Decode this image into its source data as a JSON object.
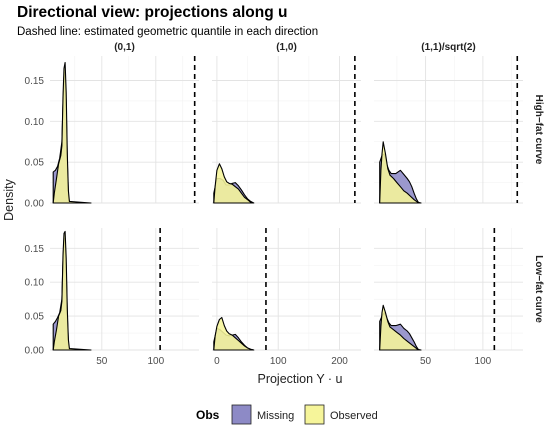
{
  "title": "Directional view: projections along u",
  "subtitle": "Dashed line: estimated geometric quantile in each direction",
  "y_axis_title": "Density",
  "x_axis_title": "Projection Y · u",
  "legend": {
    "title": "Obs",
    "entries": [
      {
        "label": "Missing",
        "color": "#8d8ac6"
      },
      {
        "label": "Observed",
        "color": "#f6f59a"
      }
    ]
  },
  "chart_data": {
    "type": "area",
    "subtype": "faceted density plot",
    "col_labels": [
      "(0,1)",
      "(1,0)",
      "(1,1)/sqrt(2)"
    ],
    "row_labels": [
      "High−fat curve",
      "Low−fat curve"
    ],
    "y_range": [
      0,
      0.18
    ],
    "y_ticks": [
      0.0,
      0.05,
      0.1,
      0.15
    ],
    "y_tick_labels": [
      "0.00",
      "0.05",
      "0.10",
      "0.15"
    ],
    "columns": [
      {
        "x_range": [
          2,
          140
        ],
        "x_ticks": [
          50,
          100
        ],
        "x_tick_labels": [
          "50",
          "100"
        ]
      },
      {
        "x_range": [
          -8,
          235
        ],
        "x_ticks": [
          0,
          100,
          200
        ],
        "x_tick_labels": [
          "0",
          "100",
          "200"
        ]
      },
      {
        "x_range": [
          5,
          135
        ],
        "x_ticks": [
          50,
          100
        ],
        "x_tick_labels": [
          "50",
          "100"
        ]
      }
    ],
    "panels": [
      {
        "row": 0,
        "col": 0,
        "quantile": 136,
        "missing": [
          [
            5,
            0.038
          ],
          [
            7,
            0.04
          ],
          [
            9,
            0.045
          ],
          [
            11,
            0.055
          ],
          [
            13,
            0.075
          ],
          [
            14,
            0.12
          ],
          [
            15,
            0.155
          ],
          [
            16,
            0.16
          ],
          [
            17,
            0.12
          ],
          [
            18,
            0.05
          ],
          [
            19,
            0.01
          ],
          [
            20,
            0.0
          ]
        ],
        "observed": [
          [
            5,
            0.0
          ],
          [
            6,
            0.012
          ],
          [
            8,
            0.03
          ],
          [
            10,
            0.048
          ],
          [
            12,
            0.058
          ],
          [
            13,
            0.07
          ],
          [
            14,
            0.13
          ],
          [
            15,
            0.165
          ],
          [
            16,
            0.172
          ],
          [
            17,
            0.135
          ],
          [
            18,
            0.06
          ],
          [
            19,
            0.015
          ],
          [
            20,
            0.002
          ],
          [
            40,
            0.0
          ]
        ]
      },
      {
        "row": 0,
        "col": 1,
        "quantile": 225,
        "missing": [
          [
            -5,
            0.012
          ],
          [
            0,
            0.03
          ],
          [
            5,
            0.03
          ],
          [
            10,
            0.028
          ],
          [
            15,
            0.022
          ],
          [
            20,
            0.022
          ],
          [
            25,
            0.024
          ],
          [
            30,
            0.025
          ],
          [
            35,
            0.021
          ],
          [
            40,
            0.016
          ],
          [
            45,
            0.01
          ],
          [
            50,
            0.005
          ],
          [
            55,
            0.002
          ],
          [
            60,
            0.0
          ]
        ],
        "observed": [
          [
            -5,
            0.0
          ],
          [
            -3,
            0.02
          ],
          [
            0,
            0.04
          ],
          [
            4,
            0.048
          ],
          [
            8,
            0.042
          ],
          [
            12,
            0.032
          ],
          [
            16,
            0.026
          ],
          [
            20,
            0.024
          ],
          [
            25,
            0.023
          ],
          [
            30,
            0.02
          ],
          [
            35,
            0.017
          ],
          [
            40,
            0.012
          ],
          [
            45,
            0.007
          ],
          [
            50,
            0.004
          ],
          [
            55,
            0.001
          ],
          [
            60,
            0.0
          ]
        ]
      },
      {
        "row": 0,
        "col": 2,
        "quantile": 130,
        "missing": [
          [
            10,
            0.05
          ],
          [
            12,
            0.058
          ],
          [
            14,
            0.06
          ],
          [
            16,
            0.048
          ],
          [
            18,
            0.04
          ],
          [
            20,
            0.036
          ],
          [
            24,
            0.036
          ],
          [
            28,
            0.04
          ],
          [
            31,
            0.035
          ],
          [
            34,
            0.03
          ],
          [
            36,
            0.026
          ],
          [
            38,
            0.02
          ],
          [
            40,
            0.012
          ],
          [
            42,
            0.005
          ],
          [
            44,
            0.0
          ]
        ],
        "observed": [
          [
            10,
            0.0
          ],
          [
            11,
            0.04
          ],
          [
            12,
            0.06
          ],
          [
            13,
            0.075
          ],
          [
            15,
            0.06
          ],
          [
            17,
            0.042
          ],
          [
            19,
            0.034
          ],
          [
            22,
            0.03
          ],
          [
            25,
            0.025
          ],
          [
            28,
            0.02
          ],
          [
            31,
            0.015
          ],
          [
            34,
            0.012
          ],
          [
            37,
            0.008
          ],
          [
            40,
            0.004
          ],
          [
            43,
            0.001
          ],
          [
            46,
            0.0
          ]
        ]
      },
      {
        "row": 1,
        "col": 0,
        "quantile": 104,
        "missing": [
          [
            5,
            0.038
          ],
          [
            7,
            0.042
          ],
          [
            9,
            0.048
          ],
          [
            11,
            0.055
          ],
          [
            13,
            0.075
          ],
          [
            14,
            0.13
          ],
          [
            15,
            0.162
          ],
          [
            16,
            0.165
          ],
          [
            17,
            0.12
          ],
          [
            18,
            0.05
          ],
          [
            19,
            0.01
          ],
          [
            20,
            0.0
          ]
        ],
        "observed": [
          [
            5,
            0.0
          ],
          [
            6,
            0.012
          ],
          [
            8,
            0.03
          ],
          [
            10,
            0.05
          ],
          [
            12,
            0.058
          ],
          [
            13,
            0.072
          ],
          [
            14,
            0.14
          ],
          [
            15,
            0.172
          ],
          [
            16,
            0.175
          ],
          [
            17,
            0.135
          ],
          [
            18,
            0.06
          ],
          [
            19,
            0.015
          ],
          [
            20,
            0.002
          ],
          [
            40,
            0.0
          ]
        ]
      },
      {
        "row": 1,
        "col": 1,
        "quantile": 80,
        "missing": [
          [
            -5,
            0.012
          ],
          [
            0,
            0.032
          ],
          [
            5,
            0.03
          ],
          [
            10,
            0.026
          ],
          [
            15,
            0.022
          ],
          [
            20,
            0.021
          ],
          [
            25,
            0.022
          ],
          [
            30,
            0.023
          ],
          [
            35,
            0.018
          ],
          [
            40,
            0.012
          ],
          [
            45,
            0.007
          ],
          [
            50,
            0.003
          ],
          [
            55,
            0.001
          ],
          [
            60,
            0.0
          ]
        ],
        "observed": [
          [
            -5,
            0.0
          ],
          [
            -3,
            0.02
          ],
          [
            0,
            0.035
          ],
          [
            4,
            0.045
          ],
          [
            8,
            0.048
          ],
          [
            12,
            0.036
          ],
          [
            16,
            0.028
          ],
          [
            20,
            0.024
          ],
          [
            25,
            0.022
          ],
          [
            30,
            0.018
          ],
          [
            35,
            0.014
          ],
          [
            40,
            0.01
          ],
          [
            45,
            0.006
          ],
          [
            50,
            0.003
          ],
          [
            55,
            0.001
          ],
          [
            60,
            0.0
          ]
        ]
      },
      {
        "row": 1,
        "col": 2,
        "quantile": 110,
        "missing": [
          [
            10,
            0.042
          ],
          [
            12,
            0.05
          ],
          [
            14,
            0.055
          ],
          [
            16,
            0.048
          ],
          [
            18,
            0.04
          ],
          [
            20,
            0.036
          ],
          [
            24,
            0.036
          ],
          [
            28,
            0.038
          ],
          [
            31,
            0.032
          ],
          [
            34,
            0.028
          ],
          [
            36,
            0.024
          ],
          [
            38,
            0.018
          ],
          [
            40,
            0.012
          ],
          [
            42,
            0.005
          ],
          [
            44,
            0.0
          ]
        ],
        "observed": [
          [
            10,
            0.0
          ],
          [
            11,
            0.035
          ],
          [
            12,
            0.055
          ],
          [
            13,
            0.066
          ],
          [
            15,
            0.055
          ],
          [
            17,
            0.042
          ],
          [
            19,
            0.034
          ],
          [
            22,
            0.03
          ],
          [
            25,
            0.026
          ],
          [
            28,
            0.022
          ],
          [
            31,
            0.017
          ],
          [
            34,
            0.013
          ],
          [
            37,
            0.009
          ],
          [
            40,
            0.005
          ],
          [
            43,
            0.001
          ],
          [
            46,
            0.0
          ]
        ]
      }
    ]
  }
}
